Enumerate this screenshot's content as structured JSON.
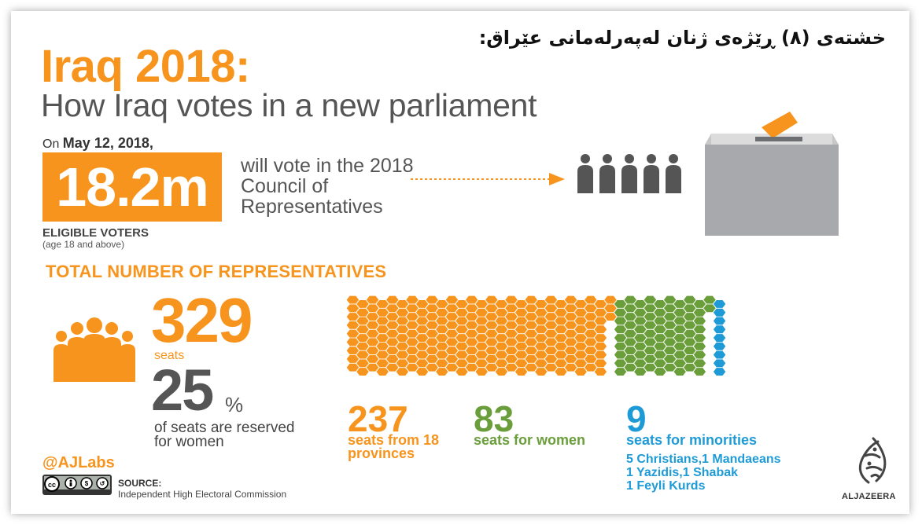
{
  "caption_kurdish": "خشتەی (٨) ڕێژەی ژنان لەپەرلەمانی عێراق:",
  "title": "Iraq 2018:",
  "subtitle": "How Iraq votes in a new parliament",
  "date_prefix": "On",
  "date": "May 12, 2018,",
  "voters_count": "18.2m",
  "will_vote_text": "will vote in the 2018 Council of Representatives",
  "eligible_label": "ELIGIBLE VOTERS",
  "eligible_note": "(age 18 and above)",
  "total_header": "TOTAL NUMBER OF REPRESENTATIVES",
  "total_seats": "329",
  "total_seats_label": "seats",
  "women_pct": "25",
  "pct_symbol": "%",
  "women_note": "of seats are reserved for women",
  "breakdown": [
    {
      "value": "237",
      "label": "seats from 18 provinces",
      "color": "#f7941d"
    },
    {
      "value": "83",
      "label": "seats for women",
      "color": "#6a9e3b"
    },
    {
      "value": "9",
      "label": "seats for minorities",
      "color": "#1e9bd7"
    }
  ],
  "minority_lines": [
    "5 Christians,1 Mandaeans",
    "1 Yazidis,1 Shabak",
    "1 Feyli Kurds"
  ],
  "seat_counts": {
    "provinces": 237,
    "women": 83,
    "minorities": 9
  },
  "credit": "@AJLabs",
  "source_label": "SOURCE:",
  "source_value": "Independent High Electoral Commission",
  "logo_text": "ALJAZEERA",
  "colors": {
    "orange": "#f7941d",
    "green": "#6a9e3b",
    "blue": "#1e9bd7",
    "grey": "#555555"
  },
  "icons": [
    "voters-icon",
    "ballot-box-icon",
    "people-group-icon",
    "creative-commons-icon",
    "aljazeera-logo-icon"
  ]
}
